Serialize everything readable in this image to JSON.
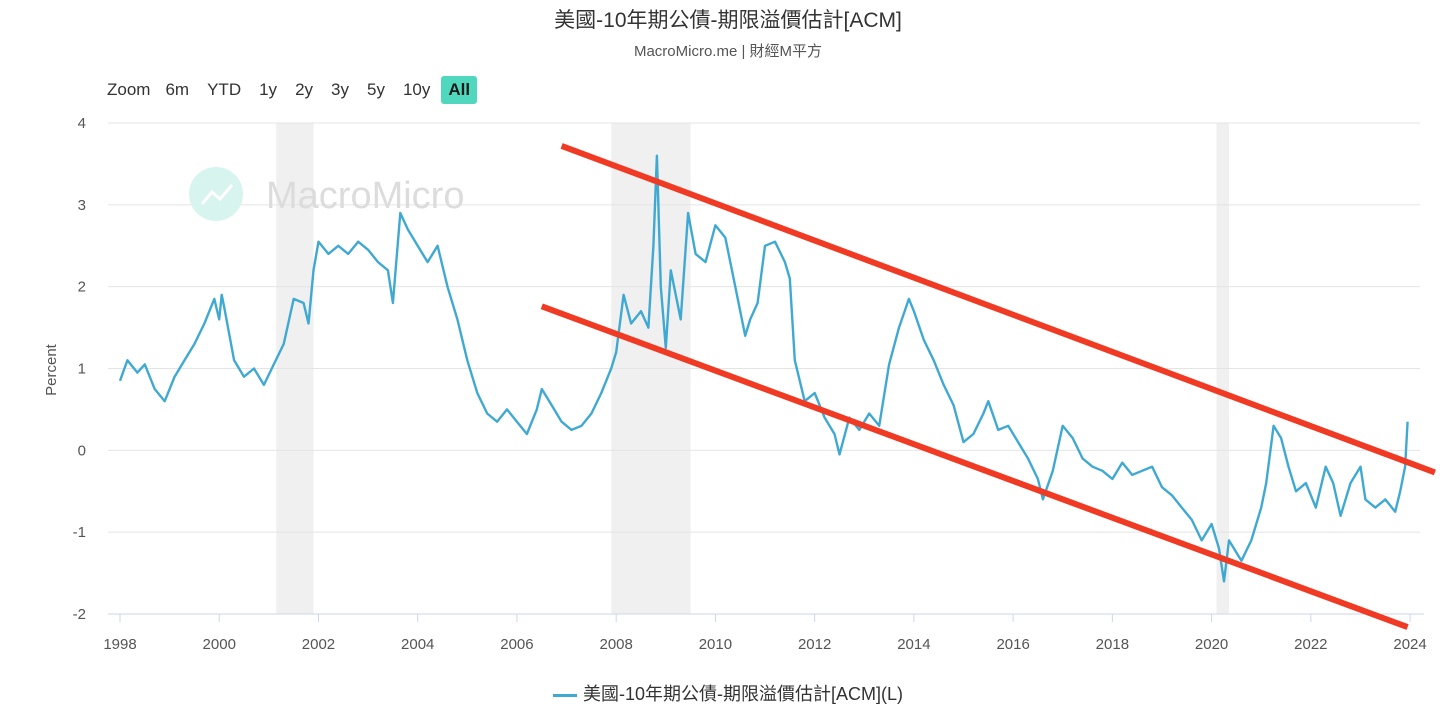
{
  "header": {
    "title": "美國-10年期公債-期限溢價估計[ACM]",
    "subtitle": "MacroMicro.me | 財經M平方"
  },
  "range_selector": {
    "label": "Zoom",
    "buttons": [
      "6m",
      "YTD",
      "1y",
      "2y",
      "3y",
      "5y",
      "10y",
      "All"
    ],
    "active": "All"
  },
  "watermark": {
    "text": "MacroMicro",
    "icon": "macromicro-logo-icon"
  },
  "colors": {
    "series": "#40a9d2",
    "trend": "#f03a24",
    "shade": "#f0f0f0",
    "button_active": "#4fd8bd"
  },
  "chart_data": {
    "type": "line",
    "ylabel": "Percent",
    "xlim": [
      1998.0,
      2024.2
    ],
    "ylim": [
      -2,
      4
    ],
    "yticks": [
      -2,
      -1,
      0,
      1,
      2,
      3,
      4
    ],
    "xticks": [
      "1998",
      "2000",
      "2002",
      "2004",
      "2006",
      "2008",
      "2010",
      "2012",
      "2014",
      "2016",
      "2018",
      "2020",
      "2022",
      "2024"
    ],
    "grid": true,
    "legend_placement": "bottom-center",
    "recession_shading": [
      [
        2001.15,
        2001.9
      ],
      [
        2007.9,
        2009.5
      ],
      [
        2020.1,
        2020.35
      ]
    ],
    "series": [
      {
        "name": "美國-10年期公債-期限溢價估計[ACM](L)",
        "points": [
          [
            1998.0,
            0.85
          ],
          [
            1998.15,
            1.1
          ],
          [
            1998.35,
            0.95
          ],
          [
            1998.5,
            1.05
          ],
          [
            1998.7,
            0.75
          ],
          [
            1998.9,
            0.6
          ],
          [
            1999.1,
            0.9
          ],
          [
            1999.3,
            1.1
          ],
          [
            1999.5,
            1.3
          ],
          [
            1999.7,
            1.55
          ],
          [
            1999.9,
            1.85
          ],
          [
            2000.0,
            1.6
          ],
          [
            2000.05,
            1.9
          ],
          [
            2000.1,
            1.75
          ],
          [
            2000.3,
            1.1
          ],
          [
            2000.5,
            0.9
          ],
          [
            2000.7,
            1.0
          ],
          [
            2000.9,
            0.8
          ],
          [
            2001.1,
            1.05
          ],
          [
            2001.3,
            1.3
          ],
          [
            2001.5,
            1.85
          ],
          [
            2001.7,
            1.8
          ],
          [
            2001.8,
            1.55
          ],
          [
            2001.9,
            2.2
          ],
          [
            2002.0,
            2.55
          ],
          [
            2002.2,
            2.4
          ],
          [
            2002.4,
            2.5
          ],
          [
            2002.6,
            2.4
          ],
          [
            2002.8,
            2.55
          ],
          [
            2003.0,
            2.45
          ],
          [
            2003.2,
            2.3
          ],
          [
            2003.4,
            2.2
          ],
          [
            2003.5,
            1.8
          ],
          [
            2003.65,
            2.9
          ],
          [
            2003.8,
            2.7
          ],
          [
            2004.0,
            2.5
          ],
          [
            2004.2,
            2.3
          ],
          [
            2004.4,
            2.5
          ],
          [
            2004.6,
            2.0
          ],
          [
            2004.8,
            1.6
          ],
          [
            2005.0,
            1.1
          ],
          [
            2005.2,
            0.7
          ],
          [
            2005.4,
            0.45
          ],
          [
            2005.6,
            0.35
          ],
          [
            2005.8,
            0.5
          ],
          [
            2006.0,
            0.35
          ],
          [
            2006.2,
            0.2
          ],
          [
            2006.4,
            0.5
          ],
          [
            2006.5,
            0.75
          ],
          [
            2006.7,
            0.55
          ],
          [
            2006.9,
            0.35
          ],
          [
            2007.1,
            0.25
          ],
          [
            2007.3,
            0.3
          ],
          [
            2007.5,
            0.45
          ],
          [
            2007.7,
            0.7
          ],
          [
            2007.9,
            1.0
          ],
          [
            2008.0,
            1.2
          ],
          [
            2008.15,
            1.9
          ],
          [
            2008.3,
            1.55
          ],
          [
            2008.5,
            1.7
          ],
          [
            2008.65,
            1.5
          ],
          [
            2008.75,
            2.5
          ],
          [
            2008.82,
            3.6
          ],
          [
            2008.9,
            2.0
          ],
          [
            2009.0,
            1.25
          ],
          [
            2009.1,
            2.2
          ],
          [
            2009.3,
            1.6
          ],
          [
            2009.45,
            2.9
          ],
          [
            2009.6,
            2.4
          ],
          [
            2009.8,
            2.3
          ],
          [
            2010.0,
            2.75
          ],
          [
            2010.2,
            2.6
          ],
          [
            2010.4,
            2.0
          ],
          [
            2010.6,
            1.4
          ],
          [
            2010.7,
            1.6
          ],
          [
            2010.85,
            1.8
          ],
          [
            2011.0,
            2.5
          ],
          [
            2011.2,
            2.55
          ],
          [
            2011.4,
            2.3
          ],
          [
            2011.5,
            2.1
          ],
          [
            2011.6,
            1.1
          ],
          [
            2011.8,
            0.6
          ],
          [
            2012.0,
            0.7
          ],
          [
            2012.2,
            0.4
          ],
          [
            2012.4,
            0.2
          ],
          [
            2012.5,
            -0.05
          ],
          [
            2012.7,
            0.4
          ],
          [
            2012.9,
            0.25
          ],
          [
            2013.1,
            0.45
          ],
          [
            2013.3,
            0.3
          ],
          [
            2013.5,
            1.05
          ],
          [
            2013.7,
            1.5
          ],
          [
            2013.9,
            1.85
          ],
          [
            2014.0,
            1.7
          ],
          [
            2014.2,
            1.35
          ],
          [
            2014.4,
            1.1
          ],
          [
            2014.6,
            0.8
          ],
          [
            2014.8,
            0.55
          ],
          [
            2015.0,
            0.1
          ],
          [
            2015.2,
            0.2
          ],
          [
            2015.4,
            0.45
          ],
          [
            2015.5,
            0.6
          ],
          [
            2015.7,
            0.25
          ],
          [
            2015.9,
            0.3
          ],
          [
            2016.1,
            0.1
          ],
          [
            2016.3,
            -0.1
          ],
          [
            2016.5,
            -0.35
          ],
          [
            2016.6,
            -0.6
          ],
          [
            2016.8,
            -0.25
          ],
          [
            2017.0,
            0.3
          ],
          [
            2017.2,
            0.15
          ],
          [
            2017.4,
            -0.1
          ],
          [
            2017.6,
            -0.2
          ],
          [
            2017.8,
            -0.25
          ],
          [
            2018.0,
            -0.35
          ],
          [
            2018.2,
            -0.15
          ],
          [
            2018.4,
            -0.3
          ],
          [
            2018.6,
            -0.25
          ],
          [
            2018.8,
            -0.2
          ],
          [
            2019.0,
            -0.45
          ],
          [
            2019.2,
            -0.55
          ],
          [
            2019.4,
            -0.7
          ],
          [
            2019.6,
            -0.85
          ],
          [
            2019.8,
            -1.1
          ],
          [
            2020.0,
            -0.9
          ],
          [
            2020.15,
            -1.2
          ],
          [
            2020.25,
            -1.6
          ],
          [
            2020.35,
            -1.1
          ],
          [
            2020.6,
            -1.35
          ],
          [
            2020.8,
            -1.1
          ],
          [
            2021.0,
            -0.7
          ],
          [
            2021.1,
            -0.4
          ],
          [
            2021.25,
            0.3
          ],
          [
            2021.4,
            0.15
          ],
          [
            2021.55,
            -0.2
          ],
          [
            2021.7,
            -0.5
          ],
          [
            2021.9,
            -0.4
          ],
          [
            2022.1,
            -0.7
          ],
          [
            2022.3,
            -0.2
          ],
          [
            2022.45,
            -0.4
          ],
          [
            2022.6,
            -0.8
          ],
          [
            2022.8,
            -0.4
          ],
          [
            2023.0,
            -0.2
          ],
          [
            2023.1,
            -0.6
          ],
          [
            2023.3,
            -0.7
          ],
          [
            2023.5,
            -0.6
          ],
          [
            2023.7,
            -0.75
          ],
          [
            2023.8,
            -0.5
          ],
          [
            2023.9,
            -0.2
          ],
          [
            2023.95,
            0.35
          ]
        ]
      }
    ],
    "annotations": [
      {
        "type": "trend-line",
        "from": [
          2006.9,
          3.72
        ],
        "to": [
          2024.5,
          -0.27
        ]
      },
      {
        "type": "trend-line",
        "from": [
          2006.5,
          1.76
        ],
        "to": [
          2023.95,
          -2.16
        ]
      }
    ]
  }
}
